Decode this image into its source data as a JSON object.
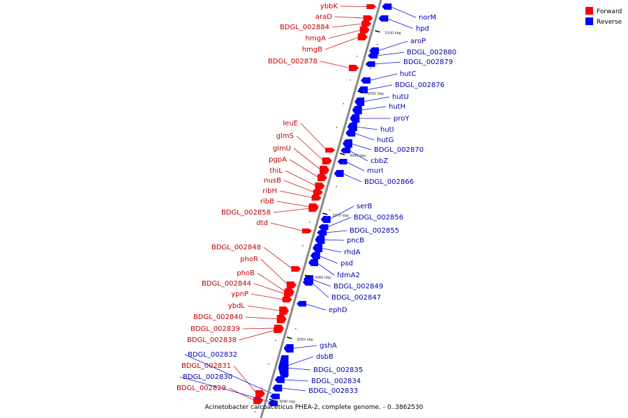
{
  "caption": "Acinetobacter calcoaceticus PHEA-2, complete genome. - 0..3862530",
  "legend": [
    {
      "label": "Forward",
      "color": "#ff0000"
    },
    {
      "label": "Reverse",
      "color": "#0000ff"
    }
  ],
  "colors": {
    "forward": "#ff0000",
    "reverse": "#0000ff",
    "forward_line": "#d01010",
    "reverse_line": "#1010d0",
    "backbone": "#888888"
  },
  "ticks": [
    "3100 kbp",
    "3090 kbp",
    "3080 kbp",
    "3070 kbp",
    "3060 kbp",
    "3050 kbp",
    "3040 kbp"
  ],
  "forward_genes": [
    "ybbK",
    "araD",
    "BDGL_002884",
    "hmgA",
    "hmgB",
    "BDGL_002878",
    "leuE",
    "glmS",
    "glmU",
    "pgpA",
    "thiL",
    "nusB",
    "ribH",
    "ribB",
    "BDGL_002858",
    "dtd",
    "BDGL_002848",
    "phoR",
    "phoB",
    "BDGL_002844",
    "ypnP",
    "ybdL",
    "BDGL_002840",
    "BDGL_002839",
    "BDGL_002838",
    "BDGL_002831",
    "BDGL_002829"
  ],
  "reverse_genes": [
    "norM",
    "hpd",
    "aroP",
    "BDGL_002880",
    "BDGL_002879",
    "hutC",
    "BDGL_002876",
    "hutU",
    "hutH",
    "proY",
    "hutI",
    "hutG",
    "BDGL_002870",
    "cbbZ",
    "murI",
    "BDGL_002866",
    "serB",
    "BDGL_002856",
    "BDGL_002855",
    "pncB",
    "rhdA",
    "psd",
    "fdmA2",
    "BDGL_002849",
    "BDGL_002847",
    "ephD",
    "gshA",
    "dsbB",
    "BDGL_002835",
    "BDGL_002834",
    "BDGL_002833",
    "BDGL_002832",
    "BDGL_002830"
  ]
}
